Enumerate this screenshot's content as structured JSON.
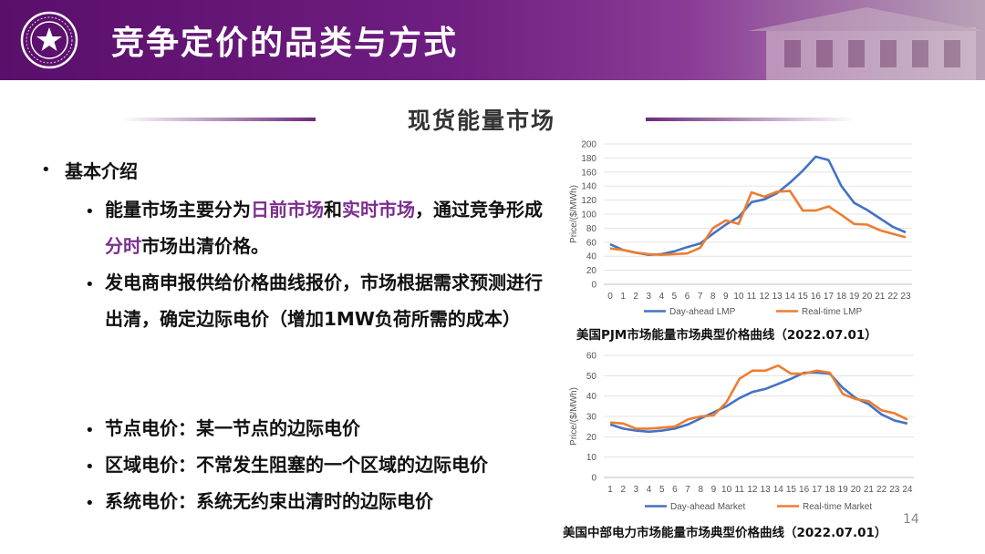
{
  "header": {
    "title": "竞争定价的品类与方式"
  },
  "section": {
    "title": "现货能量市场"
  },
  "bullets": {
    "level1": "基本介绍",
    "item1": {
      "t1": "能量市场主要分为",
      "h1": "日前市场",
      "t2": "和",
      "h2": "实时市场",
      "t3": "，通过竞争形成",
      "h3": "分时",
      "t4": "市场出清价格。"
    },
    "item2": "发电商申报供给价格曲线报价，市场根据需求预测进行出清，确定边际电价（增加1MW负荷所需的成本）",
    "item3": "节点电价：某一节点的边际电价",
    "item4": "区域电价：不常发生阻塞的一个区域的边际电价",
    "item5": "系统电价：系统无约束出清时的边际电价"
  },
  "colors": {
    "accent": "#7b2e8f",
    "day_ahead": "#4472c4",
    "real_time": "#ed7d31"
  },
  "chart_data": [
    {
      "type": "line",
      "x": [
        0,
        1,
        2,
        3,
        4,
        5,
        6,
        7,
        8,
        9,
        10,
        11,
        12,
        13,
        14,
        15,
        16,
        17,
        18,
        19,
        20,
        21,
        22,
        23
      ],
      "ylim": [
        0,
        200
      ],
      "yticks": [
        0,
        20,
        40,
        60,
        80,
        100,
        120,
        140,
        160,
        180,
        200
      ],
      "ylabel": "Price/($/MWh)",
      "grid": true,
      "legend": "bottom",
      "series": [
        {
          "name": "Day-ahead LMP",
          "values": [
            57,
            49,
            45,
            42,
            43,
            47,
            53,
            58,
            72,
            85,
            96,
            117,
            121,
            130,
            145,
            162,
            182,
            177,
            140,
            116,
            106,
            94,
            82,
            74
          ]
        },
        {
          "name": "Real-time LMP",
          "values": [
            51,
            49,
            45,
            43,
            42,
            43,
            44,
            52,
            80,
            91,
            86,
            131,
            125,
            132,
            133,
            105,
            105,
            111,
            99,
            86,
            85,
            77,
            72,
            67
          ]
        }
      ],
      "caption": "美国PJM市场能量市场典型价格曲线（2022.07.01）"
    },
    {
      "type": "line",
      "x": [
        1,
        2,
        3,
        4,
        5,
        6,
        7,
        8,
        9,
        10,
        11,
        12,
        13,
        14,
        15,
        16,
        17,
        18,
        19,
        20,
        21,
        22,
        23,
        24
      ],
      "ylim": [
        0,
        60
      ],
      "yticks": [
        0,
        10,
        20,
        30,
        40,
        50,
        60
      ],
      "ylabel": "Price/($/MWh)",
      "grid": true,
      "legend": "bottom",
      "series": [
        {
          "name": "Day-ahead Market",
          "values": [
            26,
            24,
            23,
            22.5,
            23,
            24,
            26,
            29,
            32,
            35,
            39,
            42,
            43.5,
            46,
            48.5,
            51.5,
            51.5,
            51,
            44,
            39,
            36,
            31,
            28,
            26.5
          ]
        },
        {
          "name": "Real-time Market",
          "values": [
            27,
            26.5,
            24,
            24,
            24.5,
            25,
            28.5,
            30,
            30.5,
            37,
            48.5,
            52.5,
            52.5,
            55,
            51,
            51,
            52.5,
            51.5,
            41,
            38.5,
            37.5,
            33,
            31.5,
            28.5
          ]
        }
      ],
      "caption": "美国中部电力市场能量市场典型价格曲线（2022.07.01）"
    }
  ],
  "page_number": "14"
}
